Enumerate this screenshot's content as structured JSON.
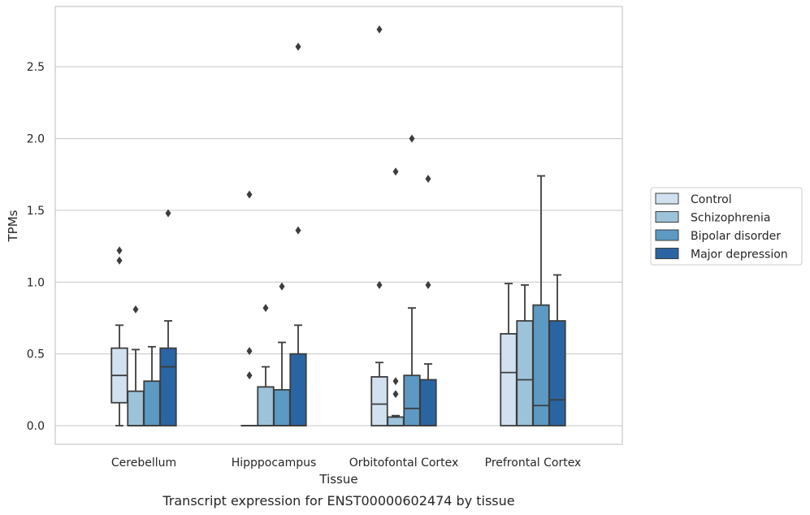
{
  "chart_data": {
    "type": "boxplot",
    "caption": "Transcript expression for ENST00000602474 by tissue",
    "xlabel": "Tissue",
    "ylabel": "TPMs",
    "ylim": [
      -0.13,
      2.92
    ],
    "yticks": [
      0.0,
      0.5,
      1.0,
      1.5,
      2.0,
      2.5
    ],
    "ytick_labels": [
      "0.0",
      "0.5",
      "1.0",
      "1.5",
      "2.0",
      "2.5"
    ],
    "grid": "horizontal",
    "legend_position": "right",
    "categories": [
      "Cerebellum",
      "Hipppocampus",
      "Orbitofontal Cortex",
      "Prefrontal Cortex"
    ],
    "series": [
      {
        "name": "Control",
        "color": "#d1e1f0",
        "boxes": [
          {
            "whislo": 0.0,
            "q1": 0.16,
            "med": 0.35,
            "q3": 0.54,
            "whishi": 0.7,
            "fliers": [
              1.15,
              1.22
            ]
          },
          {
            "whislo": 0.0,
            "q1": 0.0,
            "med": 0.0,
            "q3": 0.0,
            "whishi": 0.0,
            "fliers": [
              0.35,
              0.52,
              1.61
            ]
          },
          {
            "whislo": 0.0,
            "q1": 0.0,
            "med": 0.15,
            "q3": 0.34,
            "whishi": 0.44,
            "fliers": [
              0.98,
              2.76
            ]
          },
          {
            "whislo": 0.0,
            "q1": 0.0,
            "med": 0.37,
            "q3": 0.64,
            "whishi": 0.99,
            "fliers": []
          }
        ]
      },
      {
        "name": "Schizophrenia",
        "color": "#9cc3da",
        "boxes": [
          {
            "whislo": 0.0,
            "q1": 0.0,
            "med": 0.0,
            "q3": 0.24,
            "whishi": 0.53,
            "fliers": [
              0.81
            ]
          },
          {
            "whislo": 0.0,
            "q1": 0.0,
            "med": 0.0,
            "q3": 0.27,
            "whishi": 0.41,
            "fliers": [
              0.82
            ]
          },
          {
            "whislo": 0.0,
            "q1": 0.0,
            "med": 0.0,
            "q3": 0.06,
            "whishi": 0.07,
            "fliers": [
              0.22,
              0.31,
              1.77
            ]
          },
          {
            "whislo": 0.0,
            "q1": 0.0,
            "med": 0.32,
            "q3": 0.73,
            "whishi": 0.98,
            "fliers": []
          }
        ]
      },
      {
        "name": "Bipolar disorder",
        "color": "#5c9ac4",
        "boxes": [
          {
            "whislo": 0.0,
            "q1": 0.0,
            "med": 0.0,
            "q3": 0.31,
            "whishi": 0.55,
            "fliers": []
          },
          {
            "whislo": 0.0,
            "q1": 0.0,
            "med": 0.0,
            "q3": 0.25,
            "whishi": 0.58,
            "fliers": [
              0.97
            ]
          },
          {
            "whislo": 0.0,
            "q1": 0.0,
            "med": 0.12,
            "q3": 0.35,
            "whishi": 0.82,
            "fliers": [
              2.0
            ]
          },
          {
            "whislo": 0.0,
            "q1": 0.0,
            "med": 0.14,
            "q3": 0.84,
            "whishi": 1.74,
            "fliers": []
          }
        ]
      },
      {
        "name": "Major depression",
        "color": "#2a65a3",
        "boxes": [
          {
            "whislo": 0.0,
            "q1": 0.0,
            "med": 0.41,
            "q3": 0.54,
            "whishi": 0.73,
            "fliers": [
              1.48
            ]
          },
          {
            "whislo": 0.0,
            "q1": 0.0,
            "med": 0.0,
            "q3": 0.5,
            "whishi": 0.7,
            "fliers": [
              1.36,
              2.64
            ]
          },
          {
            "whislo": 0.0,
            "q1": 0.0,
            "med": 0.0,
            "q3": 0.32,
            "whishi": 0.43,
            "fliers": [
              0.98,
              1.72
            ]
          },
          {
            "whislo": 0.0,
            "q1": 0.0,
            "med": 0.18,
            "q3": 0.73,
            "whishi": 1.05,
            "fliers": []
          }
        ]
      }
    ],
    "colors": {
      "grid": "#cccccc",
      "frame": "#cccccc",
      "lines": "#3d3d3d",
      "text": "#262626"
    }
  }
}
